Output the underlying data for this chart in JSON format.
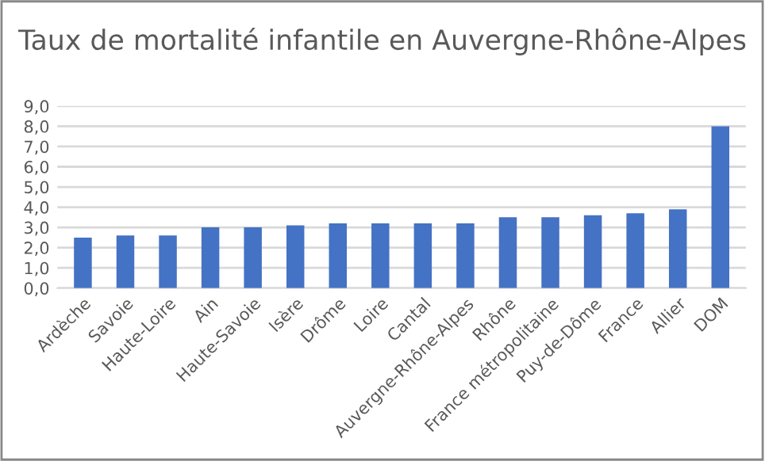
{
  "chart_data": {
    "type": "bar",
    "title": "Taux de mortalité infantile en Auvergne-Rhône-Alpes",
    "categories": [
      "Ardèche",
      "Savoie",
      "Haute-Loire",
      "Ain",
      "Haute-Savoie",
      "Isère",
      "Drôme",
      "Loire",
      "Cantal",
      "Auvergne-Rhône-Alpes",
      "Rhône",
      "France métropolitaine",
      "Puy-de-Dôme",
      "France",
      "Allier",
      "DOM"
    ],
    "values": [
      2.5,
      2.6,
      2.6,
      3.0,
      3.0,
      3.1,
      3.2,
      3.2,
      3.2,
      3.2,
      3.5,
      3.5,
      3.6,
      3.7,
      3.9,
      8.0
    ],
    "color": "#4472c4",
    "ylim": [
      0,
      9
    ],
    "yticks": [
      {
        "value": 0,
        "label": "0,0"
      },
      {
        "value": 1,
        "label": "1,0"
      },
      {
        "value": 2,
        "label": "2,0"
      },
      {
        "value": 3,
        "label": "3,0"
      },
      {
        "value": 4,
        "label": "4,0"
      },
      {
        "value": 5,
        "label": "5,0"
      },
      {
        "value": 6,
        "label": "6,0"
      },
      {
        "value": 7,
        "label": "7,0"
      },
      {
        "value": 8,
        "label": "8,0"
      },
      {
        "value": 9,
        "label": "9,0"
      }
    ],
    "grid": "y"
  }
}
